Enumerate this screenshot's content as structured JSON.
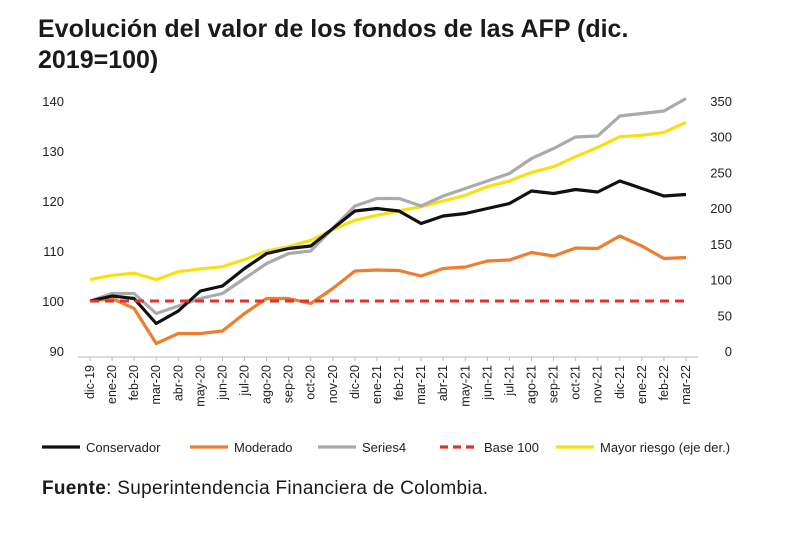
{
  "chart_data": {
    "type": "line",
    "title": "Evolución del valor de los fondos de las AFP (dic. 2019=100)",
    "categories": [
      "dic-19",
      "ene-20",
      "feb-20",
      "mar-20",
      "abr-20",
      "may-20",
      "jun-20",
      "jul-20",
      "ago-20",
      "sep-20",
      "oct-20",
      "nov-20",
      "dic-20",
      "ene-21",
      "feb-21",
      "mar-21",
      "abr-21",
      "may-21",
      "jun-21",
      "jul-21",
      "ago-21",
      "sep-21",
      "oct-21",
      "nov-21",
      "dic-21",
      "ene-22",
      "feb-22",
      "mar-22"
    ],
    "y_left": {
      "ylim": [
        90,
        140
      ],
      "ticks": [
        "90",
        "100",
        "110",
        "120",
        "130",
        "140"
      ],
      "tick_values": [
        90,
        100,
        110,
        120,
        130,
        140
      ]
    },
    "y_right": {
      "ylim": [
        0,
        350
      ],
      "ticks": [
        "0",
        "50",
        "100",
        "150",
        "200",
        "250",
        "300",
        "350"
      ],
      "tick_values": [
        0,
        50,
        100,
        150,
        200,
        250,
        300,
        350
      ]
    },
    "series": [
      {
        "name": "Conservador",
        "axis": "left",
        "color": "#111111",
        "values": [
          100,
          101,
          100.5,
          95.5,
          98,
          102,
          103,
          106.5,
          109.5,
          110.5,
          111,
          114.5,
          118,
          118.5,
          118,
          115.5,
          117,
          117.5,
          118.5,
          119.5,
          122,
          121.5,
          122.3,
          121.8,
          124,
          122.5,
          121,
          121.3
        ]
      },
      {
        "name": "Moderado",
        "axis": "left",
        "color": "#ee7d2f",
        "values": [
          100,
          100.5,
          98.5,
          91.5,
          93.5,
          93.5,
          94,
          97.5,
          100.5,
          100.5,
          99.5,
          102.5,
          106,
          106.2,
          106.1,
          105,
          106.5,
          106.8,
          108,
          108.2,
          109.7,
          109,
          110.6,
          110.5,
          113,
          111,
          108.5,
          108.7
        ]
      },
      {
        "name": "Series4",
        "axis": "left",
        "color": "#aaaaaa",
        "values": [
          100,
          101.5,
          101.5,
          97.5,
          99,
          100.5,
          101.5,
          104.5,
          107.5,
          109.5,
          110,
          114.5,
          119,
          120.5,
          120.5,
          119,
          121,
          122.5,
          124,
          125.5,
          128.5,
          130.5,
          132.8,
          133,
          137,
          137.5,
          138,
          140.5
        ]
      },
      {
        "name": "Base 100",
        "axis": "left",
        "color": "#e2302c",
        "dashed": true,
        "values": [
          100,
          100,
          100,
          100,
          100,
          100,
          100,
          100,
          100,
          100,
          100,
          100,
          100,
          100,
          100,
          100,
          100,
          100,
          100,
          100,
          100,
          100,
          100,
          100,
          100,
          100,
          100,
          100
        ]
      },
      {
        "name": "Mayor riesgo (eje der.)",
        "axis": "right",
        "color": "#f7e010",
        "values": [
          100,
          106,
          109,
          100,
          111,
          115,
          118,
          128,
          140,
          146,
          155,
          170,
          183,
          190,
          196,
          202,
          210,
          218,
          230,
          238,
          250,
          258,
          272,
          285,
          300,
          302,
          306,
          320
        ]
      }
    ]
  },
  "legend": {
    "items": [
      {
        "label": "Conservador",
        "color": "#111111",
        "dashed": false
      },
      {
        "label": "Moderado",
        "color": "#ee7d2f",
        "dashed": false
      },
      {
        "label": "Series4",
        "color": "#aaaaaa",
        "dashed": false
      },
      {
        "label": "Base 100",
        "color": "#e2302c",
        "dashed": true
      },
      {
        "label": "Mayor riesgo (eje der.)",
        "color": "#f7e010",
        "dashed": false
      }
    ]
  },
  "source": {
    "label": "Fuente",
    "text": ": Superintendencia Financiera de Colombia."
  }
}
